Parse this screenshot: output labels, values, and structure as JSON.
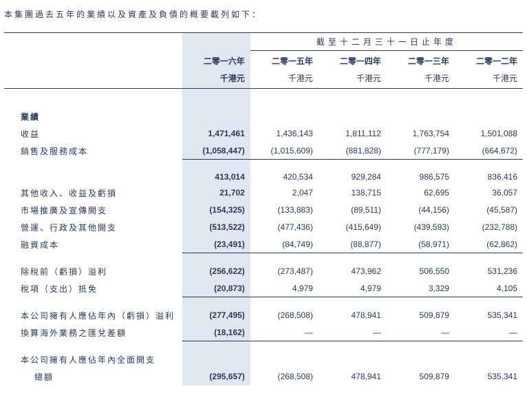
{
  "intro_text": "本集團過去五年的業績以及資產及負債的概要載列如下：",
  "table": {
    "period_header": "截至十二月三十一日止年度",
    "years": [
      "二零一六年",
      "二零一五年",
      "二零一四年",
      "二零一三年",
      "二零一二年"
    ],
    "unit": "千港元",
    "dash": "—",
    "sections": {
      "results_hdr": "業績",
      "revenue": {
        "label": "收益",
        "v": [
          "1,471,461",
          "1,436,143",
          "1,811,112",
          "1,763,754",
          "1,501,088"
        ]
      },
      "cogs": {
        "label": "銷售及服務成本",
        "v": [
          "(1,058,447)",
          "(1,015,609)",
          "(881,828)",
          "(777,179)",
          "(664,672)"
        ]
      },
      "gross": {
        "v": [
          "413,014",
          "420,534",
          "929,284",
          "986,575",
          "836,416"
        ]
      },
      "other_inc": {
        "label": "其他收入、收益及虧損",
        "v": [
          "21,702",
          "2,047",
          "138,715",
          "62,695",
          "36,057"
        ]
      },
      "selling": {
        "label": "市場推廣及宣傳開支",
        "v": [
          "(154,325)",
          "(133,883)",
          "(89,511)",
          "(44,156)",
          "(45,587)"
        ]
      },
      "admin": {
        "label": "營運、行政及其他開支",
        "v": [
          "(513,522)",
          "(477,436)",
          "(415,649)",
          "(439,593)",
          "(232,788)"
        ]
      },
      "finance": {
        "label": "融資成本",
        "v": [
          "(23,491)",
          "(84,749)",
          "(88,877)",
          "(58,971)",
          "(62,862)"
        ]
      },
      "pbt": {
        "label": "除稅前（虧損）溢利",
        "v": [
          "(256,622)",
          "(273,487)",
          "473,962",
          "506,550",
          "531,236"
        ]
      },
      "tax": {
        "label": "稅項（支出）抵免",
        "v": [
          "(20,873)",
          "4,979",
          "4,979",
          "3,329",
          "4,105"
        ]
      },
      "owners": {
        "label": "本公司擁有人應佔年內（虧損）溢利",
        "v": [
          "(277,495)",
          "(268,508)",
          "478,941",
          "509,879",
          "535,341"
        ]
      },
      "fx": {
        "label": "換算海外業務之匯兌差額",
        "v": [
          "(18,162)",
          "—",
          "—",
          "—",
          "—"
        ]
      },
      "total_comp_l1": "本公司擁有人應佔年內全面開支",
      "total_comp_l2": "總額",
      "total_comp_v": [
        "(295,657)",
        "(268,508)",
        "478,941",
        "509,879",
        "535,341"
      ]
    }
  }
}
